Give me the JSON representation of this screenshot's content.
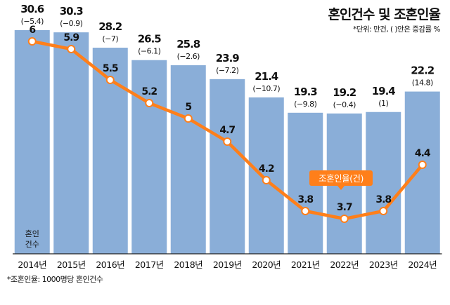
{
  "title": "혼인건수 및 조혼인율",
  "unit_note": "*단위: 만건, ( )안은 증감률 %",
  "footnote": "*조혼인율: 1000명당 혼인건수",
  "bar_series_label": [
    "혼인",
    "건수"
  ],
  "line_series_label": "조혼인율(건)",
  "colors": {
    "bar": "#8aaed8",
    "line": "#ff7f1a",
    "point": "#ffffff",
    "axis": "#222222"
  },
  "chart_data": {
    "type": "bar",
    "categories": [
      "2014년",
      "2015년",
      "2016년",
      "2017년",
      "2018년",
      "2019년",
      "2020년",
      "2021년",
      "2022년",
      "2023년",
      "2024년"
    ],
    "series": [
      {
        "name": "혼인건수",
        "type": "bar",
        "values": [
          30.6,
          30.3,
          28.2,
          26.5,
          25.8,
          23.9,
          21.4,
          19.3,
          19.2,
          19.4,
          22.2
        ],
        "value_labels": [
          "30.6",
          "30.3",
          "28.2",
          "26.5",
          "25.8",
          "23.9",
          "21.4",
          "19.3",
          "19.2",
          "19.4",
          "22.2"
        ],
        "change_labels": [
          "(−5.4)",
          "(−0.9)",
          "(−7)",
          "(−6.1)",
          "(−2.6)",
          "(−7.2)",
          "(−10.7)",
          "(−9.8)",
          "(−0.4)",
          "(1)",
          "(14.8)"
        ]
      },
      {
        "name": "조혼인율(건)",
        "type": "line",
        "values": [
          6,
          5.9,
          5.5,
          5.2,
          5,
          4.7,
          4.2,
          3.8,
          3.7,
          3.8,
          4.4
        ],
        "value_labels": [
          "6",
          "5.9",
          "5.5",
          "5.2",
          "5",
          "4.7",
          "4.2",
          "3.8",
          "3.7",
          "3.8",
          "4.4"
        ]
      }
    ],
    "bar_ylim": [
      0,
      30.6
    ],
    "line_ylim": [
      0,
      7
    ],
    "grid": false,
    "legend": "inline labels"
  }
}
